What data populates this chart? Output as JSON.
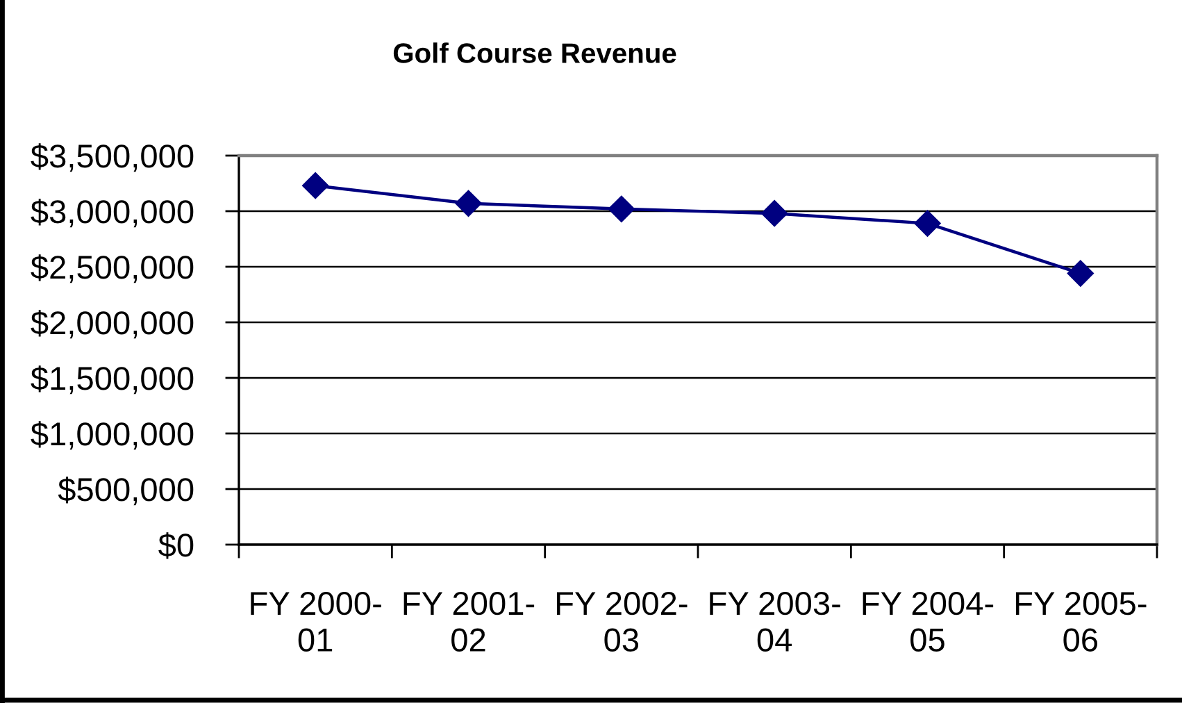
{
  "chart_data": {
    "type": "line",
    "title": "Golf Course Revenue",
    "categories": [
      "FY 2000-01",
      "FY 2001-02",
      "FY 2002-03",
      "FY 2003-04",
      "FY 2004-05",
      "FY 2005-06"
    ],
    "series": [
      {
        "color": "#000080",
        "values": [
          3230000,
          3070000,
          3020000,
          2980000,
          2890000,
          2440000
        ]
      }
    ],
    "ylim": [
      0,
      3500000
    ],
    "yticks": [
      {
        "value": 0,
        "label": "$0"
      },
      {
        "value": 500000,
        "label": "$500,000"
      },
      {
        "value": 1000000,
        "label": "$1,000,000"
      },
      {
        "value": 1500000,
        "label": "$1,500,000"
      },
      {
        "value": 2000000,
        "label": "$2,000,000"
      },
      {
        "value": 2500000,
        "label": "$2,500,000"
      },
      {
        "value": 3000000,
        "label": "$3,000,000"
      },
      {
        "value": 3500000,
        "label": "$3,500,000"
      }
    ],
    "grid": "y",
    "marker": "diamond",
    "line_style": "solid"
  }
}
